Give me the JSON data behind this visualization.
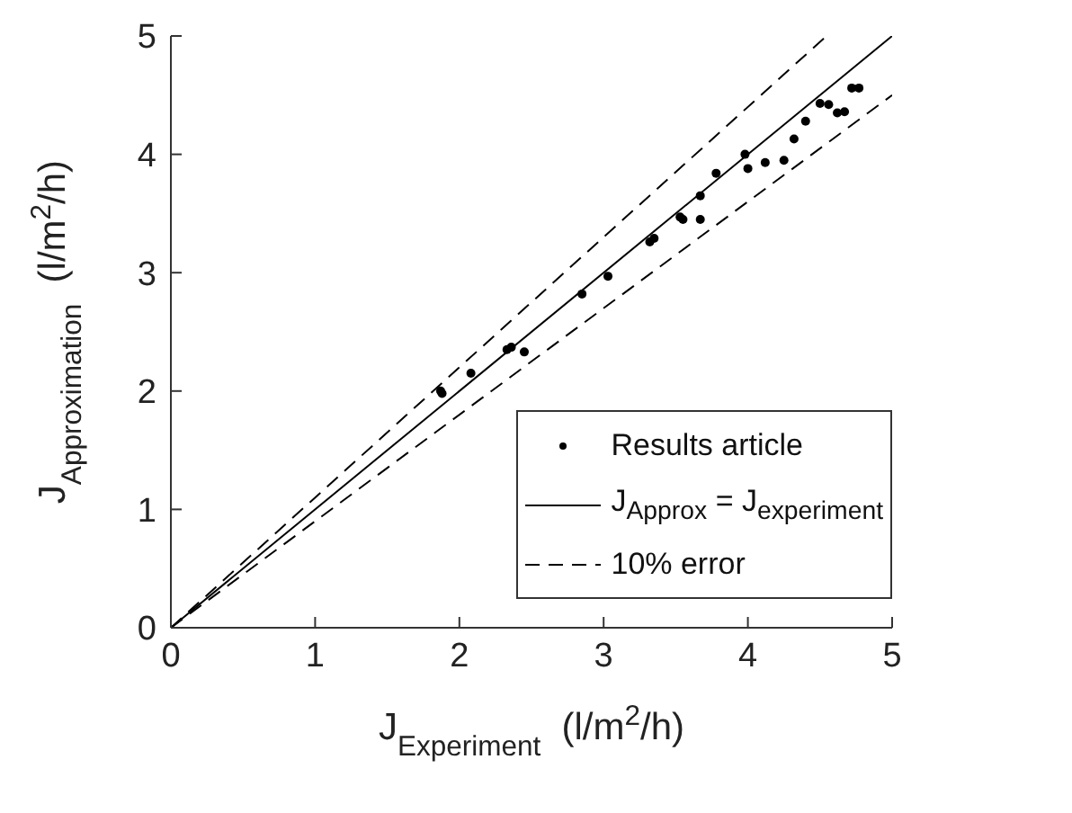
{
  "chart_data": {
    "type": "scatter",
    "xlabel": "J$_{Experiment}$  (l/m$^{2}$/h)",
    "ylabel": "J$_{Approximation}$  (l/m$^{2}$/h)",
    "xlim": [
      0,
      5
    ],
    "ylim": [
      0,
      5
    ],
    "xticks": [
      0,
      1,
      2,
      3,
      4,
      5
    ],
    "yticks": [
      0,
      1,
      2,
      3,
      4,
      5
    ],
    "grid": false,
    "legend": "bottom right",
    "series": [
      {
        "name": "Results article",
        "type": "scatter",
        "color": "#000000",
        "marker": "circle",
        "x": [
          1.87,
          1.88,
          2.08,
          2.33,
          2.36,
          2.45,
          2.85,
          3.03,
          3.32,
          3.35,
          3.53,
          3.55,
          3.67,
          3.67,
          3.78,
          3.98,
          4.0,
          4.12,
          4.25,
          4.32,
          4.4,
          4.5,
          4.56,
          4.62,
          4.67,
          4.72,
          4.77
        ],
        "values": [
          2.0,
          1.98,
          2.15,
          2.35,
          2.37,
          2.33,
          2.82,
          2.97,
          3.26,
          3.29,
          3.47,
          3.45,
          3.65,
          3.45,
          3.84,
          4.0,
          3.88,
          3.93,
          3.95,
          4.13,
          4.28,
          4.43,
          4.42,
          4.35,
          4.36,
          4.56,
          4.56
        ]
      },
      {
        "name": "J$_{Approx}$ = J$_{experiment}$",
        "type": "line",
        "color": "#000000",
        "line_style": "solid",
        "marker": "none",
        "x": [
          0,
          5
        ],
        "values": [
          0,
          5
        ]
      },
      {
        "name": "10% error",
        "type": "line",
        "color": "#000000",
        "line_style": "dashed",
        "marker": "none",
        "x": [
          0,
          4.545
        ],
        "values": [
          0,
          5
        ]
      },
      {
        "type": "line",
        "color": "#000000",
        "line_style": "dashed",
        "marker": "none",
        "x": [
          0,
          5
        ],
        "values": [
          0,
          4.5
        ]
      }
    ]
  }
}
